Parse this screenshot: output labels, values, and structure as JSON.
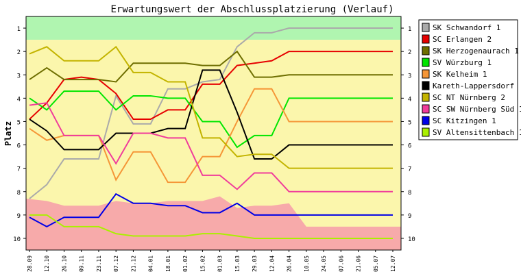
{
  "chart_data": {
    "type": "line",
    "title": "Erwartungswert der Abschlussplatzierung (Verlauf)",
    "ylabel": "Platz",
    "xlabel": "",
    "ylim": [
      10.5,
      0.5
    ],
    "y_inverted": true,
    "yticks": [
      1,
      2,
      3,
      4,
      5,
      6,
      7,
      8,
      9,
      10
    ],
    "x": [
      "28.09",
      "12.10",
      "26.10",
      "09.11",
      "23.11",
      "07.12",
      "21.12",
      "04.01",
      "18.01",
      "01.02",
      "15.02",
      "01.03",
      "15.03",
      "29.03",
      "12.04",
      "26.04",
      "10.05",
      "24.05",
      "07.06",
      "21.06",
      "05.07",
      "12.07"
    ],
    "legend_position": "right",
    "grid": false,
    "zones": [
      {
        "name": "promotion",
        "color": "#b0f5b0",
        "y_from": 0.5,
        "y_to": 1.5
      },
      {
        "name": "mid",
        "color": "#fbf6ac",
        "y_from": 1.5,
        "y_to": 10.5
      },
      {
        "name": "relegation",
        "color": "#f7aaaa",
        "y_upper": [
          8.3,
          8.4,
          8.6,
          8.6,
          8.6,
          8.4,
          8.5,
          8.5,
          8.4,
          8.4,
          8.4,
          8.2,
          8.7,
          8.6,
          8.6,
          8.5,
          9.5,
          9.5,
          9.5,
          9.5,
          9.5,
          9.5
        ],
        "y_to": 10.5
      }
    ],
    "series": [
      {
        "name": "SK Schwandorf 1",
        "color": "#aaaaaa",
        "values": [
          8.3,
          7.7,
          6.6,
          6.6,
          6.6,
          3.9,
          5.1,
          5.1,
          3.6,
          3.6,
          3.3,
          3.2,
          1.8,
          1.2,
          1.2,
          1.0,
          1.0,
          1.0,
          1.0,
          1.0,
          1.0,
          1.0
        ]
      },
      {
        "name": "SC Erlangen 2",
        "color": "#e60000",
        "values": [
          4.9,
          4.2,
          3.2,
          3.1,
          3.2,
          3.8,
          4.9,
          4.9,
          4.5,
          4.5,
          3.4,
          3.4,
          2.6,
          2.5,
          2.4,
          2.0,
          2.0,
          2.0,
          2.0,
          2.0,
          2.0,
          2.0
        ]
      },
      {
        "name": "SK Herzogenaurach 1",
        "color": "#6e6e00",
        "values": [
          3.2,
          2.7,
          3.2,
          3.2,
          3.2,
          3.3,
          2.5,
          2.5,
          2.5,
          2.5,
          2.6,
          2.6,
          2.0,
          3.1,
          3.1,
          3.0,
          3.0,
          3.0,
          3.0,
          3.0,
          3.0,
          3.0
        ]
      },
      {
        "name": "SV Würzburg 1",
        "color": "#00e600",
        "values": [
          4.0,
          4.5,
          3.7,
          3.7,
          3.7,
          4.5,
          3.9,
          3.9,
          4.0,
          4.0,
          5.0,
          5.0,
          6.1,
          5.6,
          5.6,
          4.0,
          4.0,
          4.0,
          4.0,
          4.0,
          4.0,
          4.0
        ]
      },
      {
        "name": "SK Kelheim 1",
        "color": "#f59637",
        "values": [
          5.3,
          5.8,
          5.6,
          5.6,
          5.6,
          7.5,
          6.3,
          6.3,
          7.6,
          7.6,
          6.5,
          6.5,
          5.0,
          3.6,
          3.6,
          5.0,
          5.0,
          5.0,
          5.0,
          5.0,
          5.0,
          5.0
        ]
      },
      {
        "name": "Kareth-Lappersdorf",
        "color": "#000000",
        "values": [
          4.9,
          5.4,
          6.2,
          6.2,
          6.2,
          5.5,
          5.5,
          5.5,
          5.3,
          5.3,
          2.8,
          2.8,
          4.6,
          6.6,
          6.6,
          6.0,
          6.0,
          6.0,
          6.0,
          6.0,
          6.0,
          6.0
        ]
      },
      {
        "name": "SC NT Nürnberg 2",
        "color": "#c3b400",
        "values": [
          2.1,
          1.8,
          2.4,
          2.4,
          2.4,
          1.8,
          2.9,
          2.9,
          3.3,
          3.3,
          5.7,
          5.7,
          6.5,
          6.4,
          6.4,
          7.0,
          7.0,
          7.0,
          7.0,
          7.0,
          7.0,
          7.0
        ]
      },
      {
        "name": "SC SW Nürnberg Süd 1",
        "color": "#f03c9b",
        "values": [
          4.3,
          4.2,
          5.6,
          5.6,
          5.6,
          6.8,
          5.5,
          5.5,
          5.7,
          5.7,
          7.3,
          7.3,
          7.9,
          7.2,
          7.2,
          8.0,
          8.0,
          8.0,
          8.0,
          8.0,
          8.0,
          8.0
        ]
      },
      {
        "name": "SC Kitzingen 1",
        "color": "#0000e6",
        "values": [
          9.1,
          9.5,
          9.1,
          9.1,
          9.1,
          8.1,
          8.5,
          8.5,
          8.6,
          8.6,
          8.9,
          8.9,
          8.5,
          9.0,
          9.0,
          9.0,
          9.0,
          9.0,
          9.0,
          9.0,
          9.0,
          9.0
        ]
      },
      {
        "name": "SV Altensittenbach 1",
        "color": "#aaf000",
        "values": [
          9.0,
          9.0,
          9.5,
          9.5,
          9.5,
          9.8,
          9.9,
          9.9,
          9.9,
          9.9,
          9.8,
          9.8,
          9.9,
          10.0,
          10.0,
          10.0,
          10.0,
          10.0,
          10.0,
          10.0,
          10.0,
          10.0
        ]
      }
    ]
  }
}
